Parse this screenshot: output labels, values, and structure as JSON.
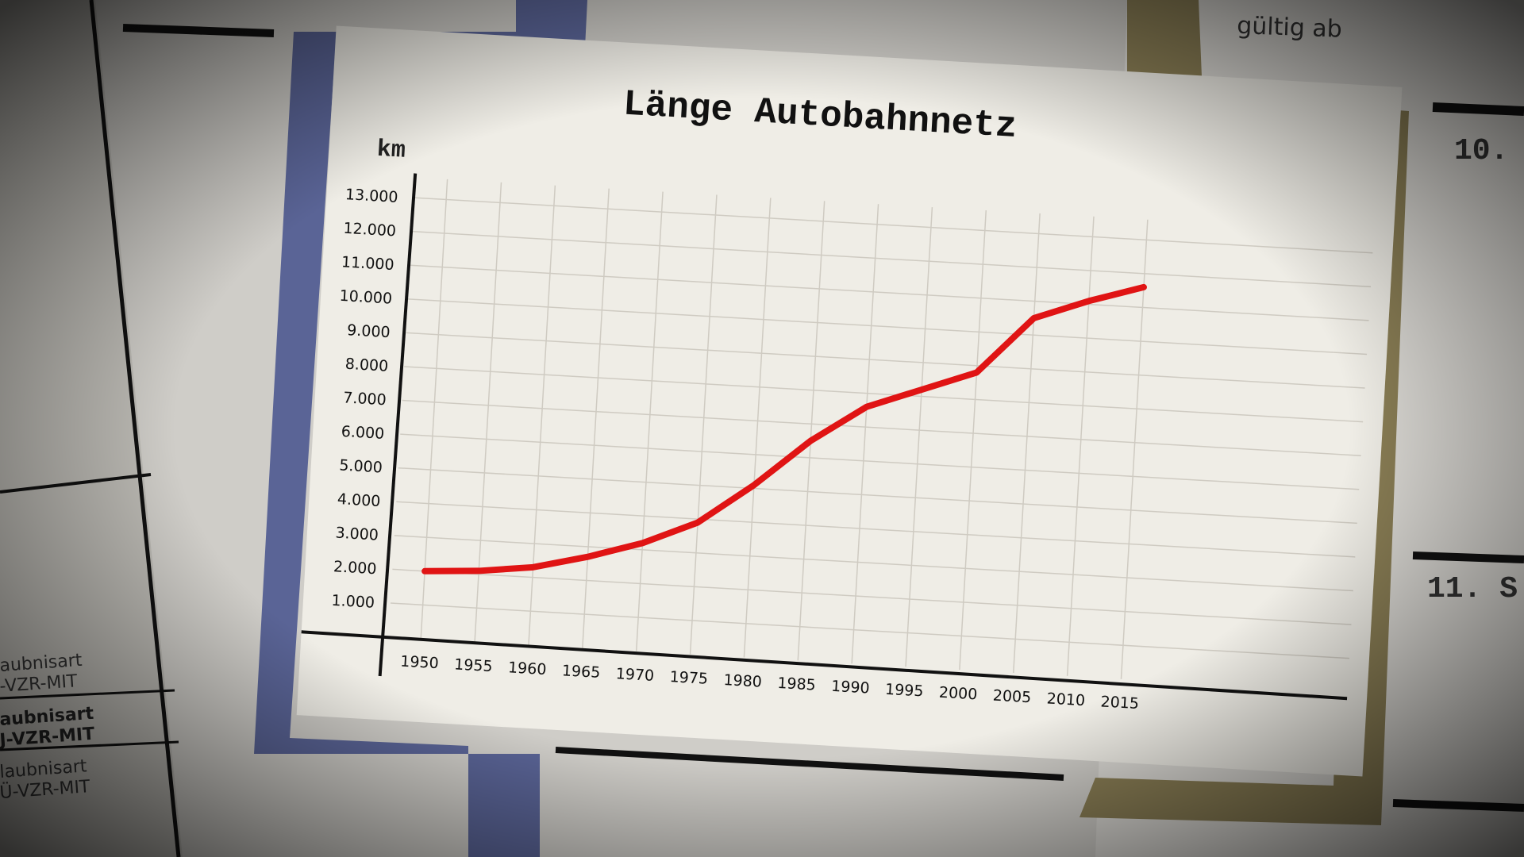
{
  "chart_data": {
    "type": "line",
    "title": "Länge Autobahnnetz",
    "y_label": "km",
    "x": [
      1950,
      1955,
      1960,
      1965,
      1970,
      1975,
      1980,
      1985,
      1990,
      1995,
      2000,
      2005,
      2010,
      2015
    ],
    "series": [
      {
        "color": "#e01414",
        "values": [
          2000,
          2100,
          2300,
          2700,
          3200,
          3900,
          5100,
          6500,
          7600,
          8200,
          8800,
          10500,
          11100,
          11600
        ]
      }
    ],
    "xlim": [
      1947,
      2036
    ],
    "ylim": [
      0,
      13600
    ],
    "yticks": [
      {
        "value": 1000,
        "label": "1.000"
      },
      {
        "value": 2000,
        "label": "2.000"
      },
      {
        "value": 3000,
        "label": "3.000"
      },
      {
        "value": 4000,
        "label": "4.000"
      },
      {
        "value": 5000,
        "label": "5.000"
      },
      {
        "value": 6000,
        "label": "6.000"
      },
      {
        "value": 7000,
        "label": "7.000"
      },
      {
        "value": 8000,
        "label": "8.000"
      },
      {
        "value": 9000,
        "label": "9.000"
      },
      {
        "value": 10000,
        "label": "10.000"
      },
      {
        "value": 11000,
        "label": "11.000"
      },
      {
        "value": 12000,
        "label": "12.000"
      },
      {
        "value": 13000,
        "label": "13.000"
      }
    ],
    "grid": true
  },
  "background_text": [
    "gültig ab",
    "10.",
    "11. S",
    "aubnisart",
    "-VZR-MIT",
    "aubnisart",
    "J-VZR-MIT",
    "laubnisart",
    "Ü-VZR-MIT"
  ]
}
